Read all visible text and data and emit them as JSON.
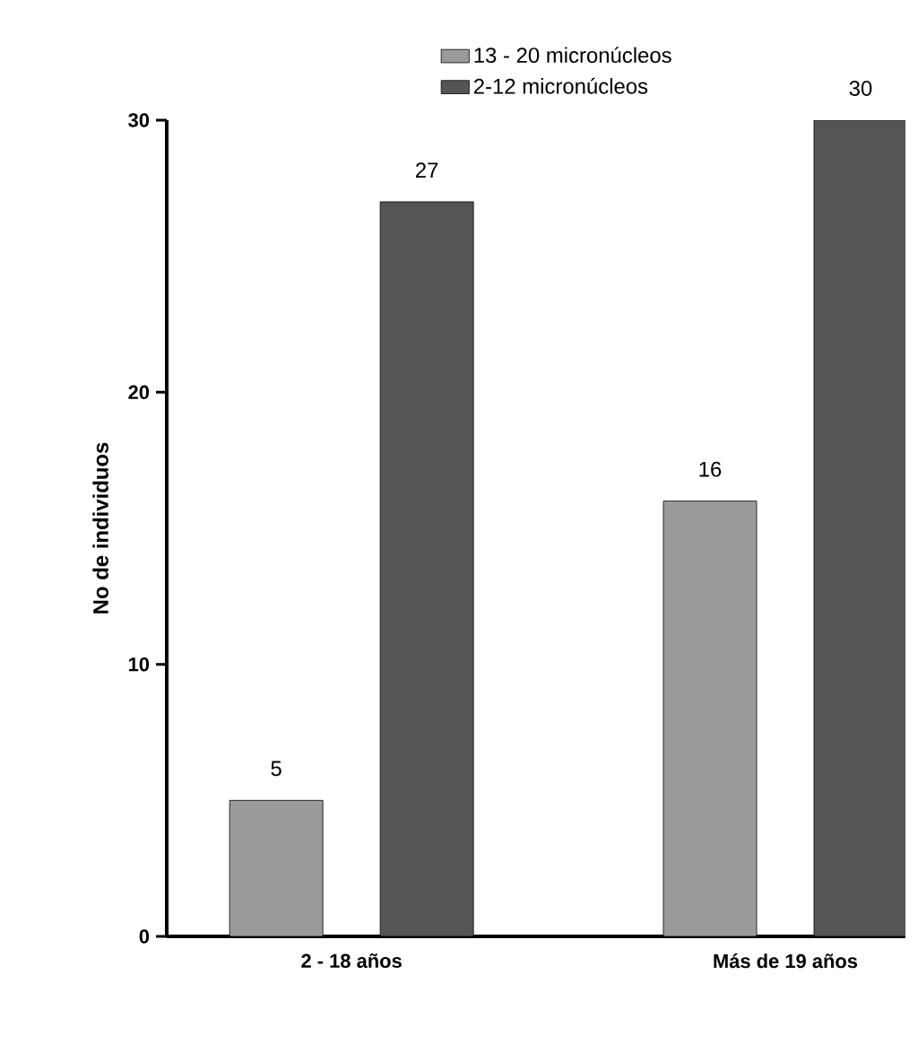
{
  "chart_data": {
    "type": "bar",
    "categories": [
      "2  - 18 años",
      "Más de 19 años"
    ],
    "series": [
      {
        "name": "13 - 20 micronúcleos",
        "color": "#9a9a9a",
        "values": [
          5,
          16
        ]
      },
      {
        "name": "2-12 micronúcleos",
        "color": "#555555",
        "values": [
          27,
          30
        ]
      }
    ],
    "ylabel": "No de individuos",
    "ylim": [
      0,
      30
    ],
    "yticks": [
      0,
      10,
      20,
      30
    ],
    "data_labels": true,
    "legend": "top",
    "grid": false
  }
}
